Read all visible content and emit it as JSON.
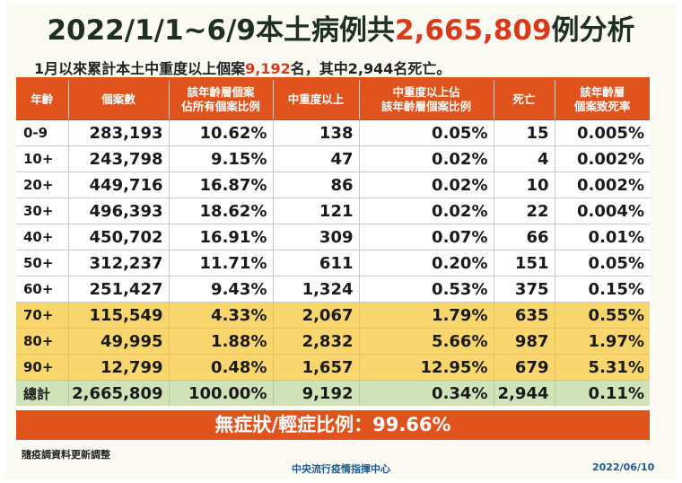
{
  "title": {
    "prefix": "2022/1/1~6/9本土病例共",
    "highlight": "2,665,809",
    "suffix": "例分析"
  },
  "subtitle": {
    "prefix": "1月以來累計本土中重度以上個案",
    "highlight": "9,192",
    "suffix": "名，其中2,944名死亡。"
  },
  "table": {
    "headers": [
      "年齡",
      "個案數",
      "該年齡層個案\n佔所有個案比例",
      "中重度以上",
      "中重度以上佔\n該年齡層個案比例",
      "死亡",
      "該年齡層\n個案致死率"
    ],
    "rows": [
      {
        "style": "white",
        "cells": [
          "0-9",
          "283,193",
          "10.62%",
          "138",
          "0.05%",
          "15",
          "0.005%"
        ]
      },
      {
        "style": "white",
        "cells": [
          "10+",
          "243,798",
          "9.15%",
          "47",
          "0.02%",
          "4",
          "0.002%"
        ]
      },
      {
        "style": "white",
        "cells": [
          "20+",
          "449,716",
          "16.87%",
          "86",
          "0.02%",
          "10",
          "0.002%"
        ]
      },
      {
        "style": "white",
        "cells": [
          "30+",
          "496,393",
          "18.62%",
          "121",
          "0.02%",
          "22",
          "0.004%"
        ]
      },
      {
        "style": "white",
        "cells": [
          "40+",
          "450,702",
          "16.91%",
          "309",
          "0.07%",
          "66",
          "0.01%"
        ]
      },
      {
        "style": "white",
        "cells": [
          "50+",
          "312,237",
          "11.71%",
          "611",
          "0.20%",
          "151",
          "0.05%"
        ]
      },
      {
        "style": "white",
        "cells": [
          "60+",
          "251,427",
          "9.43%",
          "1,324",
          "0.53%",
          "375",
          "0.15%"
        ]
      },
      {
        "style": "yellow",
        "cells": [
          "70+",
          "115,549",
          "4.33%",
          "2,067",
          "1.79%",
          "635",
          "0.55%"
        ]
      },
      {
        "style": "yellow",
        "cells": [
          "80+",
          "49,995",
          "1.88%",
          "2,832",
          "5.66%",
          "987",
          "1.97%"
        ]
      },
      {
        "style": "yellow",
        "cells": [
          "90+",
          "12,799",
          "0.48%",
          "1,657",
          "12.95%",
          "679",
          "5.31%"
        ]
      },
      {
        "style": "total",
        "cells": [
          "總計",
          "2,665,809",
          "100.00%",
          "9,192",
          "0.34%",
          "2,944",
          "0.11%"
        ]
      }
    ]
  },
  "banner": "無症狀/輕症比例：99.66%",
  "note": "隨疫調資料更新調整",
  "org": "中央流行疫情指揮中心",
  "date": "2022/06/10",
  "colors": {
    "accent": "#e0531d",
    "highlight_text": "#d83a1a",
    "elderly_rows": "#f8d66d",
    "total_row": "#cfe2b8"
  }
}
